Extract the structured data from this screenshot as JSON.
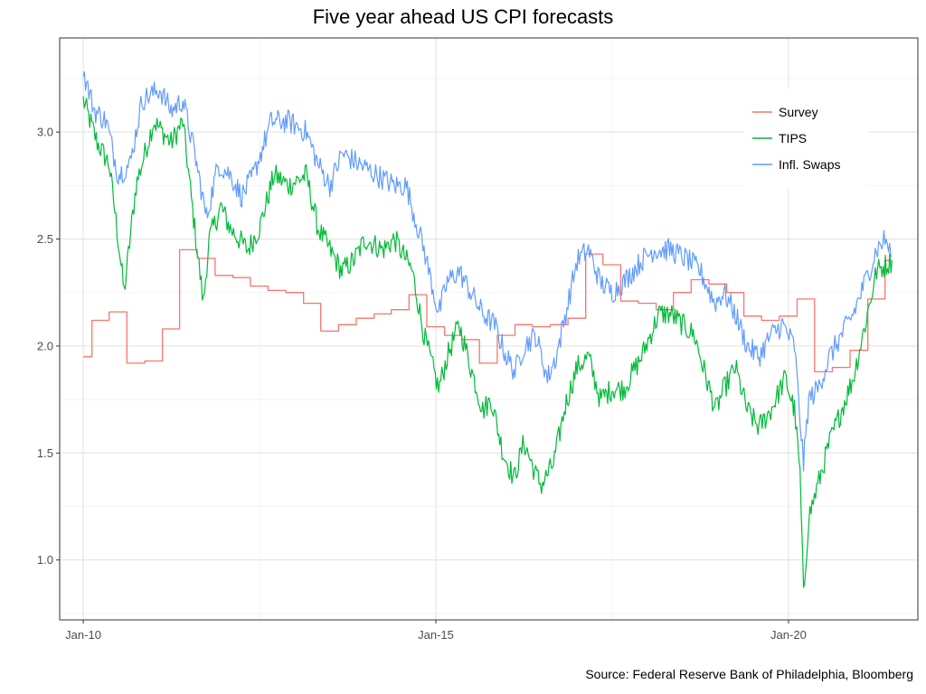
{
  "chart_data": {
    "type": "line",
    "title": "Five year ahead US CPI forecasts",
    "caption": "Source: Federal Reserve Bank of Philadelphia, Bloomberg",
    "xlabel": "",
    "ylabel": "",
    "x_ticks": [
      {
        "date": "2010-01-01",
        "label": "Jan-10"
      },
      {
        "date": "2015-01-01",
        "label": "Jan-15"
      },
      {
        "date": "2020-01-01",
        "label": "Jan-20"
      }
    ],
    "y_ticks": [
      1.0,
      1.5,
      2.0,
      2.5,
      3.0
    ],
    "xlim": [
      "2009-09-01",
      "2021-11-01"
    ],
    "ylim": [
      0.72,
      3.44
    ],
    "grid": true,
    "legend_position": "top-right",
    "series": [
      {
        "name": "Survey",
        "color": "#F8766D",
        "step": true,
        "points": [
          [
            "2010-01-01",
            1.95
          ],
          [
            "2010-02-15",
            2.12
          ],
          [
            "2010-05-15",
            2.16
          ],
          [
            "2010-08-15",
            1.92
          ],
          [
            "2010-11-15",
            1.93
          ],
          [
            "2011-02-15",
            2.08
          ],
          [
            "2011-05-15",
            2.45
          ],
          [
            "2011-08-15",
            2.41
          ],
          [
            "2011-11-15",
            2.33
          ],
          [
            "2012-02-15",
            2.32
          ],
          [
            "2012-05-15",
            2.28
          ],
          [
            "2012-08-15",
            2.26
          ],
          [
            "2012-11-15",
            2.25
          ],
          [
            "2013-02-15",
            2.2
          ],
          [
            "2013-05-15",
            2.07
          ],
          [
            "2013-08-15",
            2.1
          ],
          [
            "2013-11-15",
            2.13
          ],
          [
            "2014-02-15",
            2.15
          ],
          [
            "2014-05-15",
            2.17
          ],
          [
            "2014-08-15",
            2.24
          ],
          [
            "2014-11-15",
            2.09
          ],
          [
            "2015-02-15",
            2.05
          ],
          [
            "2015-05-15",
            2.03
          ],
          [
            "2015-08-15",
            1.92
          ],
          [
            "2015-11-15",
            2.05
          ],
          [
            "2016-02-15",
            2.1
          ],
          [
            "2016-05-15",
            2.09
          ],
          [
            "2016-08-15",
            2.1
          ],
          [
            "2016-11-15",
            2.13
          ],
          [
            "2017-02-15",
            2.43
          ],
          [
            "2017-05-15",
            2.38
          ],
          [
            "2017-08-15",
            2.21
          ],
          [
            "2017-11-15",
            2.2
          ],
          [
            "2018-02-15",
            2.17
          ],
          [
            "2018-05-15",
            2.25
          ],
          [
            "2018-08-15",
            2.31
          ],
          [
            "2018-11-15",
            2.29
          ],
          [
            "2019-02-15",
            2.25
          ],
          [
            "2019-05-15",
            2.14
          ],
          [
            "2019-08-15",
            2.12
          ],
          [
            "2019-11-15",
            2.14
          ],
          [
            "2020-02-15",
            2.22
          ],
          [
            "2020-05-15",
            1.88
          ],
          [
            "2020-08-15",
            1.9
          ],
          [
            "2020-11-15",
            1.98
          ],
          [
            "2021-02-15",
            2.22
          ],
          [
            "2021-05-15",
            2.4
          ],
          [
            "2021-06-20",
            2.4
          ]
        ]
      },
      {
        "name": "TIPS",
        "color": "#00BA38",
        "step": false,
        "points": [
          [
            "2010-01-01",
            3.15
          ],
          [
            "2010-03-15",
            2.95
          ],
          [
            "2010-05-15",
            2.85
          ],
          [
            "2010-07-01",
            2.5
          ],
          [
            "2010-08-01",
            2.25
          ],
          [
            "2010-10-01",
            2.75
          ],
          [
            "2011-01-01",
            3.05
          ],
          [
            "2011-04-01",
            2.95
          ],
          [
            "2011-06-01",
            3.05
          ],
          [
            "2011-08-01",
            2.55
          ],
          [
            "2011-09-15",
            2.2
          ],
          [
            "2011-10-15",
            2.5
          ],
          [
            "2011-12-15",
            2.65
          ],
          [
            "2012-02-01",
            2.55
          ],
          [
            "2012-05-01",
            2.45
          ],
          [
            "2012-07-01",
            2.55
          ],
          [
            "2012-09-15",
            2.8
          ],
          [
            "2012-12-01",
            2.75
          ],
          [
            "2013-03-01",
            2.8
          ],
          [
            "2013-05-01",
            2.55
          ],
          [
            "2013-07-01",
            2.45
          ],
          [
            "2013-09-01",
            2.35
          ],
          [
            "2013-11-01",
            2.4
          ],
          [
            "2014-01-01",
            2.5
          ],
          [
            "2014-04-01",
            2.45
          ],
          [
            "2014-06-01",
            2.5
          ],
          [
            "2014-09-01",
            2.35
          ],
          [
            "2014-11-01",
            2.05
          ],
          [
            "2015-01-15",
            1.8
          ],
          [
            "2015-03-01",
            1.95
          ],
          [
            "2015-05-01",
            2.1
          ],
          [
            "2015-07-01",
            1.9
          ],
          [
            "2015-09-01",
            1.7
          ],
          [
            "2015-10-15",
            1.75
          ],
          [
            "2015-12-15",
            1.5
          ],
          [
            "2016-02-10",
            1.38
          ],
          [
            "2016-04-01",
            1.55
          ],
          [
            "2016-06-01",
            1.4
          ],
          [
            "2016-07-01",
            1.35
          ],
          [
            "2016-09-01",
            1.45
          ],
          [
            "2016-11-01",
            1.72
          ],
          [
            "2017-01-01",
            1.9
          ],
          [
            "2017-03-01",
            1.95
          ],
          [
            "2017-05-01",
            1.75
          ],
          [
            "2017-07-01",
            1.8
          ],
          [
            "2017-09-01",
            1.8
          ],
          [
            "2017-12-01",
            1.95
          ],
          [
            "2018-03-01",
            2.15
          ],
          [
            "2018-05-01",
            2.15
          ],
          [
            "2018-07-01",
            2.1
          ],
          [
            "2018-09-01",
            2.05
          ],
          [
            "2018-11-01",
            1.85
          ],
          [
            "2018-12-20",
            1.7
          ],
          [
            "2019-02-01",
            1.8
          ],
          [
            "2019-04-01",
            1.9
          ],
          [
            "2019-06-01",
            1.7
          ],
          [
            "2019-08-01",
            1.62
          ],
          [
            "2019-10-01",
            1.7
          ],
          [
            "2019-12-15",
            1.85
          ],
          [
            "2020-02-01",
            1.7
          ],
          [
            "2020-03-01",
            1.4
          ],
          [
            "2020-03-19",
            0.83
          ],
          [
            "2020-04-15",
            1.2
          ],
          [
            "2020-06-01",
            1.35
          ],
          [
            "2020-08-01",
            1.55
          ],
          [
            "2020-10-01",
            1.7
          ],
          [
            "2020-12-01",
            1.85
          ],
          [
            "2021-02-01",
            2.1
          ],
          [
            "2021-04-01",
            2.35
          ],
          [
            "2021-06-20",
            2.4
          ]
        ]
      },
      {
        "name": "Infl. Swaps",
        "color": "#619CFF",
        "step": false,
        "points": [
          [
            "2010-01-01",
            3.28
          ],
          [
            "2010-03-01",
            3.1
          ],
          [
            "2010-05-01",
            3.05
          ],
          [
            "2010-07-01",
            2.8
          ],
          [
            "2010-09-01",
            2.85
          ],
          [
            "2010-11-01",
            3.15
          ],
          [
            "2011-02-01",
            3.2
          ],
          [
            "2011-04-01",
            3.1
          ],
          [
            "2011-06-01",
            3.15
          ],
          [
            "2011-08-01",
            2.9
          ],
          [
            "2011-10-01",
            2.6
          ],
          [
            "2011-12-01",
            2.85
          ],
          [
            "2012-02-01",
            2.8
          ],
          [
            "2012-04-01",
            2.7
          ],
          [
            "2012-06-01",
            2.8
          ],
          [
            "2012-09-01",
            3.05
          ],
          [
            "2012-12-01",
            3.05
          ],
          [
            "2013-03-01",
            3.0
          ],
          [
            "2013-05-01",
            2.85
          ],
          [
            "2013-07-01",
            2.75
          ],
          [
            "2013-09-01",
            2.9
          ],
          [
            "2013-12-01",
            2.85
          ],
          [
            "2014-03-01",
            2.8
          ],
          [
            "2014-06-01",
            2.75
          ],
          [
            "2014-08-01",
            2.75
          ],
          [
            "2014-09-15",
            2.6
          ],
          [
            "2014-11-01",
            2.45
          ],
          [
            "2015-01-15",
            2.15
          ],
          [
            "2015-03-01",
            2.3
          ],
          [
            "2015-05-01",
            2.35
          ],
          [
            "2015-07-01",
            2.25
          ],
          [
            "2015-09-01",
            2.15
          ],
          [
            "2015-11-01",
            2.1
          ],
          [
            "2016-01-01",
            1.95
          ],
          [
            "2016-02-15",
            1.88
          ],
          [
            "2016-04-01",
            2.0
          ],
          [
            "2016-06-01",
            2.05
          ],
          [
            "2016-08-01",
            1.85
          ],
          [
            "2016-09-15",
            1.95
          ],
          [
            "2016-11-15",
            2.2
          ],
          [
            "2017-01-01",
            2.4
          ],
          [
            "2017-03-01",
            2.45
          ],
          [
            "2017-05-01",
            2.3
          ],
          [
            "2017-07-01",
            2.25
          ],
          [
            "2017-09-01",
            2.3
          ],
          [
            "2017-12-01",
            2.4
          ],
          [
            "2018-02-01",
            2.45
          ],
          [
            "2018-05-01",
            2.45
          ],
          [
            "2018-08-01",
            2.4
          ],
          [
            "2018-10-01",
            2.35
          ],
          [
            "2018-12-15",
            2.2
          ],
          [
            "2019-02-01",
            2.25
          ],
          [
            "2019-04-01",
            2.15
          ],
          [
            "2019-06-01",
            2.0
          ],
          [
            "2019-08-01",
            1.95
          ],
          [
            "2019-10-01",
            2.05
          ],
          [
            "2019-12-01",
            2.1
          ],
          [
            "2020-02-01",
            2.0
          ],
          [
            "2020-03-19",
            1.45
          ],
          [
            "2020-04-15",
            1.75
          ],
          [
            "2020-06-01",
            1.8
          ],
          [
            "2020-08-01",
            1.95
          ],
          [
            "2020-10-01",
            2.05
          ],
          [
            "2020-12-01",
            2.15
          ],
          [
            "2021-02-01",
            2.3
          ],
          [
            "2021-04-01",
            2.45
          ],
          [
            "2021-05-15",
            2.5
          ],
          [
            "2021-06-20",
            2.42
          ]
        ]
      }
    ]
  }
}
